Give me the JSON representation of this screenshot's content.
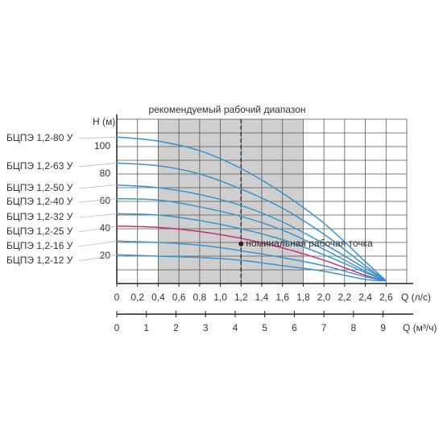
{
  "chart_data": {
    "type": "line",
    "title": "рекомендуемый рабочий диапазон",
    "y_label": "H (м)",
    "x_label": "Q (л/с)",
    "x2_label": "Q (м³/ч)",
    "xlim": [
      0,
      2.8
    ],
    "xticks": [
      0,
      {
        "value": 0.2,
        "label": "0,2"
      },
      {
        "value": 0.4,
        "label": "0,4"
      },
      {
        "value": 0.6,
        "label": "0,6"
      },
      {
        "value": 0.8,
        "label": "0,8"
      },
      {
        "value": 1.0,
        "label": "1,0"
      },
      {
        "value": 1.2,
        "label": "1,2"
      },
      {
        "value": 1.4,
        "label": "1,4"
      },
      {
        "value": 1.6,
        "label": "1,6"
      },
      {
        "value": 1.8,
        "label": "1,8"
      },
      {
        "value": 2.0,
        "label": "2,0"
      },
      {
        "value": 2.2,
        "label": "2,2"
      },
      {
        "value": 2.4,
        "label": "2,4"
      },
      {
        "value": 2.6,
        "label": "2,6"
      }
    ],
    "x2lim": [
      0,
      9.8
    ],
    "x2ticks": [
      0,
      1,
      2,
      3,
      4,
      5,
      6,
      7,
      8,
      9
    ],
    "ylim": [
      0,
      120
    ],
    "yticks": [
      20,
      40,
      60,
      80,
      100
    ],
    "grid": true,
    "range": [
      0.4,
      1.8
    ],
    "annotation": {
      "text": "номинальная рабочая точка",
      "x": 1.2,
      "y": 29
    },
    "x": [
      0,
      0.4,
      0.8,
      1.2,
      1.6,
      2.0,
      2.4,
      2.6
    ],
    "series": [
      {
        "name": "БЦПЭ 1,2-80 У",
        "color": "#3b95cc",
        "values": [
          107,
          104,
          97,
          84,
          66,
          44,
          16,
          2
        ]
      },
      {
        "name": "БЦПЭ 1,2-63 У",
        "color": "#3b95cc",
        "values": [
          88,
          86,
          80,
          69,
          55,
          36,
          13,
          2
        ]
      },
      {
        "name": "БЦПЭ 1,2-50 У",
        "color": "#3b95cc",
        "values": [
          72,
          70,
          65,
          57,
          45,
          29,
          11,
          2
        ]
      },
      {
        "name": "БЦПЭ 1,2-40 У",
        "color": "#3b95cc",
        "values": [
          62,
          61,
          56,
          49,
          39,
          25,
          9,
          2
        ]
      },
      {
        "name": "БЦПЭ 1,2-32 У",
        "color": "#3b95cc",
        "values": [
          51,
          50,
          46,
          40,
          32,
          21,
          8,
          2
        ]
      },
      {
        "name": "БЦПЭ 1,2-25 У",
        "color": "#c2307a",
        "values": [
          42,
          41,
          38,
          33,
          26,
          17,
          6,
          2
        ]
      },
      {
        "name": "БЦПЭ 1,2-16 У",
        "color": "#3b95cc",
        "values": [
          31,
          30,
          28,
          24,
          19,
          13,
          5,
          2
        ]
      },
      {
        "name": "БЦПЭ 1,2-12 У",
        "color": "#3b95cc",
        "values": [
          21,
          20,
          19,
          17,
          13,
          9,
          3,
          2
        ]
      }
    ]
  }
}
